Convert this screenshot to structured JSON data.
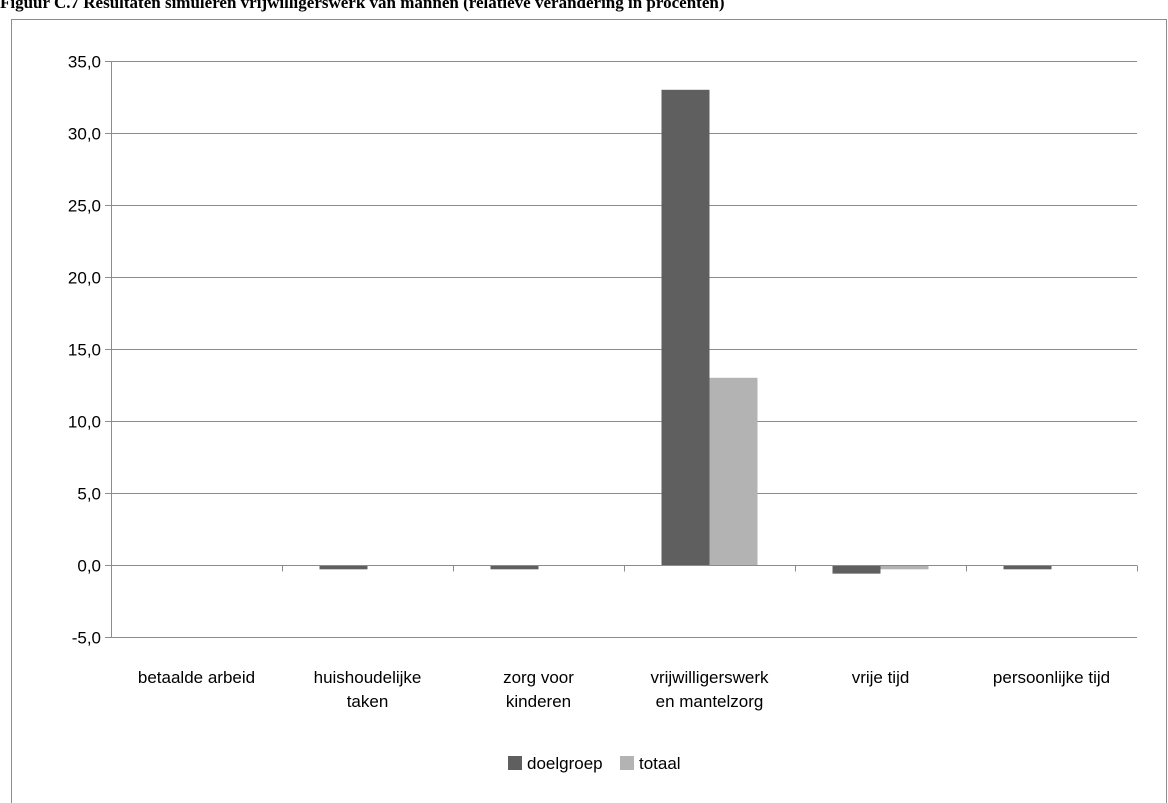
{
  "figure_title": "Figuur C.7 Resultaten simuleren vrijwilligerswerk van mannen (relatieve verandering in procenten)",
  "colors": {
    "doelgroep": "#5f5f5f",
    "totaal": "#b3b3b3",
    "grid": "#8c8c8c"
  },
  "chart_data": {
    "type": "bar",
    "title": "",
    "xlabel": "",
    "ylabel": "",
    "ylim": [
      -5,
      35
    ],
    "ytick_step": 5,
    "ytick_labels": [
      "-5,0",
      "0,0",
      "5,0",
      "10,0",
      "15,0",
      "20,0",
      "25,0",
      "30,0",
      "35,0"
    ],
    "grid": true,
    "legend_position": "bottom",
    "categories": [
      [
        "betaalde arbeid"
      ],
      [
        "huishoudelijke",
        "taken"
      ],
      [
        "zorg voor",
        "kinderen"
      ],
      [
        "vrijwilligerswerk",
        "en mantelzorg"
      ],
      [
        "vrije tijd"
      ],
      [
        "persoonlijke tijd"
      ]
    ],
    "series": [
      {
        "name": "doelgroep",
        "values": [
          0.0,
          -0.3,
          -0.3,
          33.0,
          -0.6,
          -0.3
        ]
      },
      {
        "name": "totaal",
        "values": [
          0.0,
          0.0,
          0.0,
          13.0,
          -0.3,
          0.0
        ]
      }
    ]
  }
}
